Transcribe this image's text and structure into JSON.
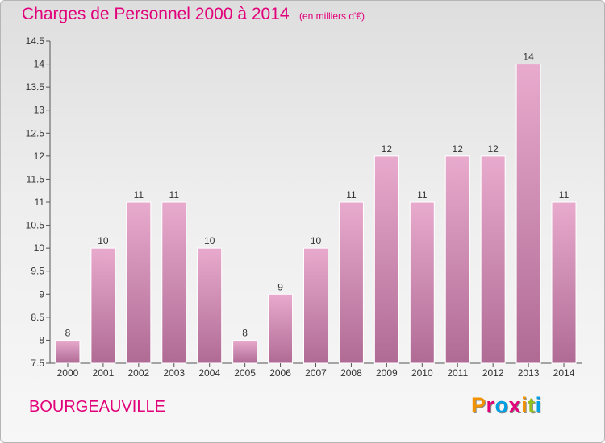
{
  "header": {
    "title": "Charges de Personnel 2000 à 2014",
    "subtitle": "(en milliers d'€)"
  },
  "footer": {
    "town": "BOURGEAUVILLE",
    "logo_text": "Proxiti",
    "logo_colors": [
      "#f39200",
      "#e2007a",
      "#009fe3",
      "#e2007a",
      "#f39200",
      "#95c11f",
      "#009fe3"
    ]
  },
  "colors": {
    "bar_top": "#e8aacd",
    "bar_bottom": "#b06b95",
    "accent": "#e2007a",
    "axis": "#555555"
  },
  "chart_data": {
    "type": "bar",
    "categories": [
      "2000",
      "2001",
      "2002",
      "2003",
      "2004",
      "2005",
      "2006",
      "2007",
      "2008",
      "2009",
      "2010",
      "2011",
      "2012",
      "2013",
      "2014"
    ],
    "values": [
      8,
      10,
      11,
      11,
      10,
      8,
      9,
      10,
      11,
      12,
      11,
      12,
      12,
      14,
      11
    ],
    "data_labels": [
      "8",
      "10",
      "11",
      "11",
      "10",
      "8",
      "9",
      "10",
      "11",
      "12",
      "11",
      "12",
      "12",
      "14",
      "11"
    ],
    "ylim": [
      7.5,
      14.5
    ],
    "yticks": [
      7.5,
      8,
      8.5,
      9,
      9.5,
      10,
      10.5,
      11,
      11.5,
      12,
      12.5,
      13,
      13.5,
      14,
      14.5
    ],
    "ytick_labels": [
      "7.5",
      "8",
      "8.5",
      "9",
      "9.5",
      "10",
      "10.5",
      "11",
      "11.5",
      "12",
      "12.5",
      "13",
      "13.5",
      "14",
      "14.5"
    ],
    "grid": false
  }
}
